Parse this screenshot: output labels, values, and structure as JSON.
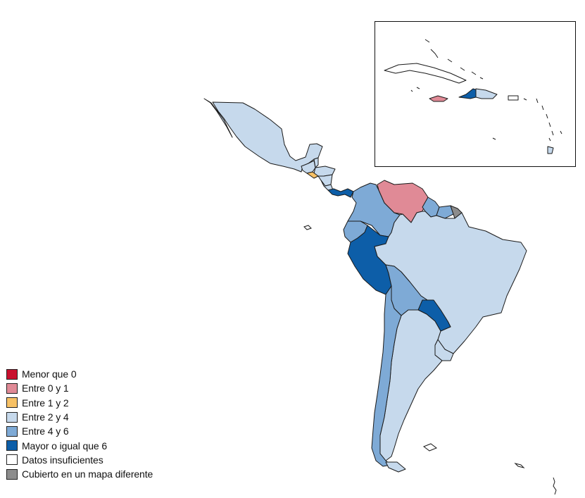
{
  "legend": [
    {
      "label": "Menor que 0",
      "color": "#c8102e"
    },
    {
      "label": "Entre 0 y 1",
      "color": "#e08a96"
    },
    {
      "label": "Entre 1 y 2",
      "color": "#f7c165"
    },
    {
      "label": "Entre 2 y 4",
      "color": "#c6d9ec"
    },
    {
      "label": "Entre 4 y 6",
      "color": "#7eaad6"
    },
    {
      "label": "Mayor o igual que 6",
      "color": "#0d5ea8"
    },
    {
      "label": "Datos insuficientes",
      "color": "#ffffff"
    },
    {
      "label": "Cubierto en un mapa diferente",
      "color": "#8c8c8c"
    }
  ],
  "regions": [
    {
      "name": "mexico",
      "class": "Entre 2 y 4"
    },
    {
      "name": "guatemala",
      "class": "Entre 2 y 4"
    },
    {
      "name": "belize",
      "class": "Entre 2 y 4"
    },
    {
      "name": "honduras",
      "class": "Entre 2 y 4"
    },
    {
      "name": "el-salvador",
      "class": "Entre 1 y 2"
    },
    {
      "name": "nicaragua",
      "class": "Entre 2 y 4"
    },
    {
      "name": "costa-rica",
      "class": "Entre 2 y 4"
    },
    {
      "name": "panama",
      "class": "Mayor o igual que 6"
    },
    {
      "name": "colombia",
      "class": "Entre 4 y 6"
    },
    {
      "name": "venezuela",
      "class": "Entre 0 y 1"
    },
    {
      "name": "guyana",
      "class": "Entre 4 y 6"
    },
    {
      "name": "suriname",
      "class": "Entre 4 y 6"
    },
    {
      "name": "french-guiana",
      "class": "Cubierto en un mapa diferente"
    },
    {
      "name": "ecuador",
      "class": "Entre 4 y 6"
    },
    {
      "name": "peru",
      "class": "Mayor o igual que 6"
    },
    {
      "name": "brazil",
      "class": "Entre 2 y 4"
    },
    {
      "name": "bolivia",
      "class": "Entre 4 y 6"
    },
    {
      "name": "paraguay",
      "class": "Mayor o igual que 6"
    },
    {
      "name": "chile",
      "class": "Entre 4 y 6"
    },
    {
      "name": "argentina",
      "class": "Entre 2 y 4"
    },
    {
      "name": "uruguay",
      "class": "Entre 2 y 4"
    },
    {
      "name": "cuba",
      "class": "Datos insuficientes"
    },
    {
      "name": "bahamas",
      "class": "Datos insuficientes"
    },
    {
      "name": "jamaica",
      "class": "Entre 0 y 1"
    },
    {
      "name": "haiti",
      "class": "Mayor o igual que 6"
    },
    {
      "name": "dominican-republic",
      "class": "Entre 2 y 4"
    },
    {
      "name": "puerto-rico",
      "class": "Datos insuficientes"
    },
    {
      "name": "trinidad-and-tobago",
      "class": "Entre 2 y 4"
    },
    {
      "name": "lesser-antilles",
      "class": "Datos insuficientes"
    }
  ]
}
